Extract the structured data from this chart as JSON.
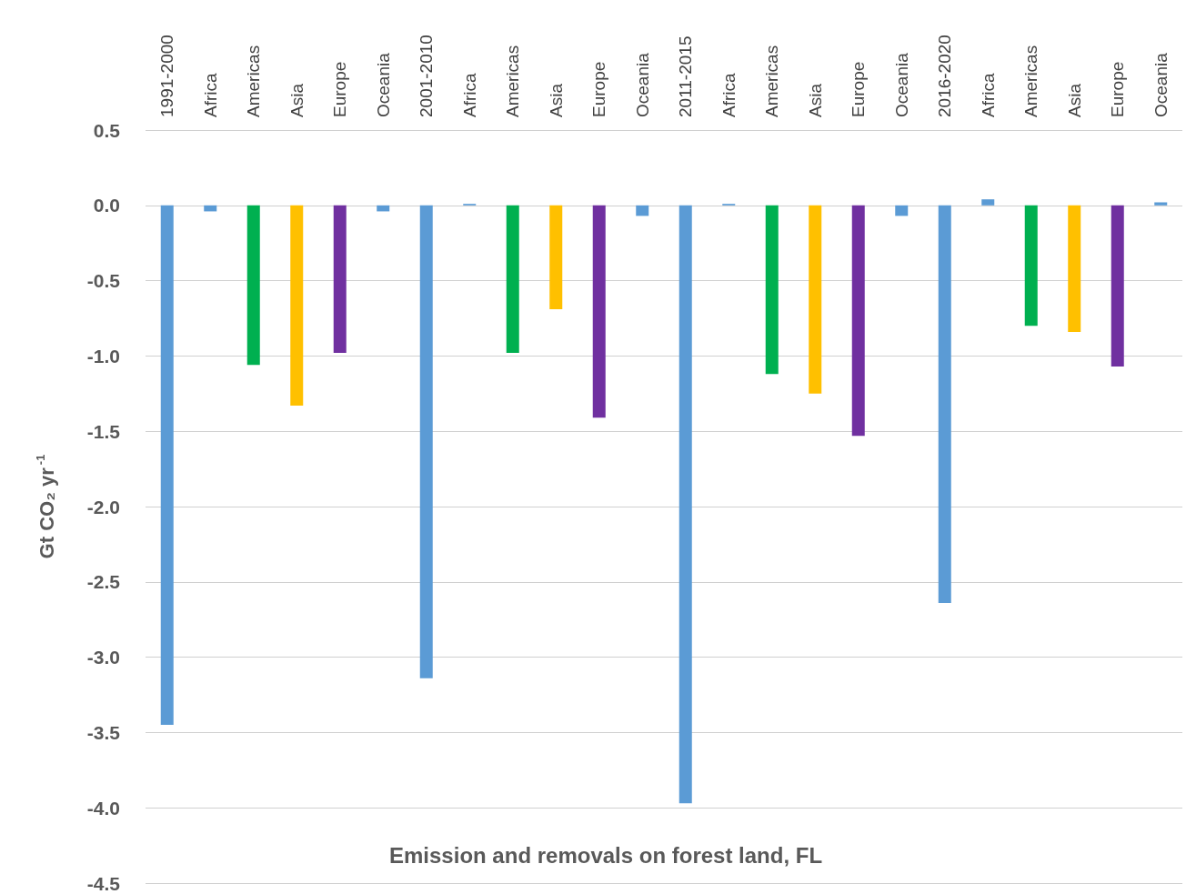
{
  "chart_data": {
    "type": "bar",
    "xlabel": "Emission and removals on forest land, FL",
    "ylabel": "Gt CO₂ yr$^{-1}$",
    "categories": [
      "1991-2000",
      "Africa",
      "Americas",
      "Asia",
      "Europe",
      "Oceania",
      "2001-2010",
      "Africa",
      "Americas",
      "Asia",
      "Europe",
      "Oceania",
      "2011-2015",
      "Africa",
      "Americas",
      "Asia",
      "Europe",
      "Oceania",
      "2016-2020",
      "Africa",
      "Americas",
      "Asia",
      "Europe",
      "Oceania"
    ],
    "values": [
      -3.45,
      -0.04,
      -1.06,
      -1.33,
      -0.98,
      -0.04,
      -3.14,
      0.01,
      -0.98,
      -0.69,
      -1.41,
      -0.07,
      -3.97,
      0.01,
      -1.12,
      -1.25,
      -1.53,
      -0.07,
      -2.64,
      0.04,
      -0.8,
      -0.84,
      -1.07,
      0.02
    ],
    "colors": [
      "#5b9bd5",
      "#5b9bd5",
      "#00b050",
      "#ffc000",
      "#7030a0",
      "#5b9bd5",
      "#5b9bd5",
      "#5b9bd5",
      "#00b050",
      "#ffc000",
      "#7030a0",
      "#5b9bd5",
      "#5b9bd5",
      "#5b9bd5",
      "#00b050",
      "#ffc000",
      "#7030a0",
      "#5b9bd5",
      "#5b9bd5",
      "#5b9bd5",
      "#00b050",
      "#ffc000",
      "#7030a0",
      "#5b9bd5"
    ],
    "ylim": [
      -4.5,
      0.5
    ],
    "yticks": [
      {
        "value": 0.5,
        "label": "0.5"
      },
      {
        "value": 0,
        "label": "0.0"
      },
      {
        "value": -0.5,
        "label": "-0.5"
      },
      {
        "value": -1,
        "label": "-1.0"
      },
      {
        "value": -1.5,
        "label": "-1.5"
      },
      {
        "value": -2,
        "label": "-2.0"
      },
      {
        "value": -2.5,
        "label": "-2.5"
      },
      {
        "value": -3,
        "label": "-3.0"
      },
      {
        "value": -3.5,
        "label": "-3.5"
      },
      {
        "value": -4,
        "label": "-4.0"
      },
      {
        "value": -4.5,
        "label": "-4.5"
      }
    ],
    "grid": "y"
  }
}
